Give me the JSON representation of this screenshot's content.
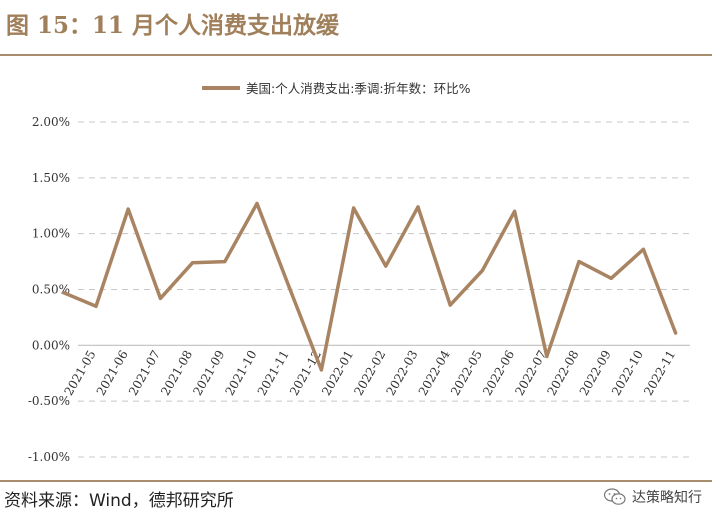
{
  "title": "图 15：11 月个人消费支出放缓",
  "source": "资料来源：Wind，德邦研究所",
  "watermark": {
    "text": "达策略知行",
    "icon": "wechat-icon"
  },
  "chart_data": {
    "type": "line",
    "title": "图 15：11 月个人消费支出放缓",
    "xlabel": "",
    "ylabel": "",
    "ylim": [
      -1.0,
      2.0
    ],
    "yticks": [
      "2.00%",
      "1.50%",
      "1.00%",
      "0.50%",
      "0.00%",
      "-0.50%",
      "-1.00%"
    ],
    "ytick_values": [
      2.0,
      1.5,
      1.0,
      0.5,
      0.0,
      -0.5,
      -1.0
    ],
    "grid": "horizontal-dashed",
    "legend": "top-center",
    "categories": [
      "2021-05",
      "2021-06",
      "2021-07",
      "2021-08",
      "2021-09",
      "2021-10",
      "2021-11",
      "2021-12",
      "2022-01",
      "2022-02",
      "2022-03",
      "2022-04",
      "2022-05",
      "2022-06",
      "2022-07",
      "2022-08",
      "2022-09",
      "2022-10",
      "2022-11"
    ],
    "series": [
      {
        "name": "美国:个人消费支出:季调:折年数：环比%",
        "color": "#a98462",
        "points": [
          {
            "x": "2021-04",
            "y": 0.47
          },
          {
            "x": "2021-05",
            "y": 0.35
          },
          {
            "x": "2021-06",
            "y": 1.22
          },
          {
            "x": "2021-07",
            "y": 0.42
          },
          {
            "x": "2021-08",
            "y": 0.74
          },
          {
            "x": "2021-09",
            "y": 0.75
          },
          {
            "x": "2021-10",
            "y": 1.27
          },
          {
            "x": "2021-11",
            "y": 0.52
          },
          {
            "x": "2021-12",
            "y": -0.22
          },
          {
            "x": "2022-01",
            "y": 1.23
          },
          {
            "x": "2022-02",
            "y": 0.71
          },
          {
            "x": "2022-03",
            "y": 1.24
          },
          {
            "x": "2022-04",
            "y": 0.36
          },
          {
            "x": "2022-05",
            "y": 0.67
          },
          {
            "x": "2022-06",
            "y": 1.2
          },
          {
            "x": "2022-07",
            "y": -0.1
          },
          {
            "x": "2022-08",
            "y": 0.75
          },
          {
            "x": "2022-09",
            "y": 0.6
          },
          {
            "x": "2022-10",
            "y": 0.86
          },
          {
            "x": "2022-11",
            "y": 0.11
          }
        ]
      }
    ]
  }
}
